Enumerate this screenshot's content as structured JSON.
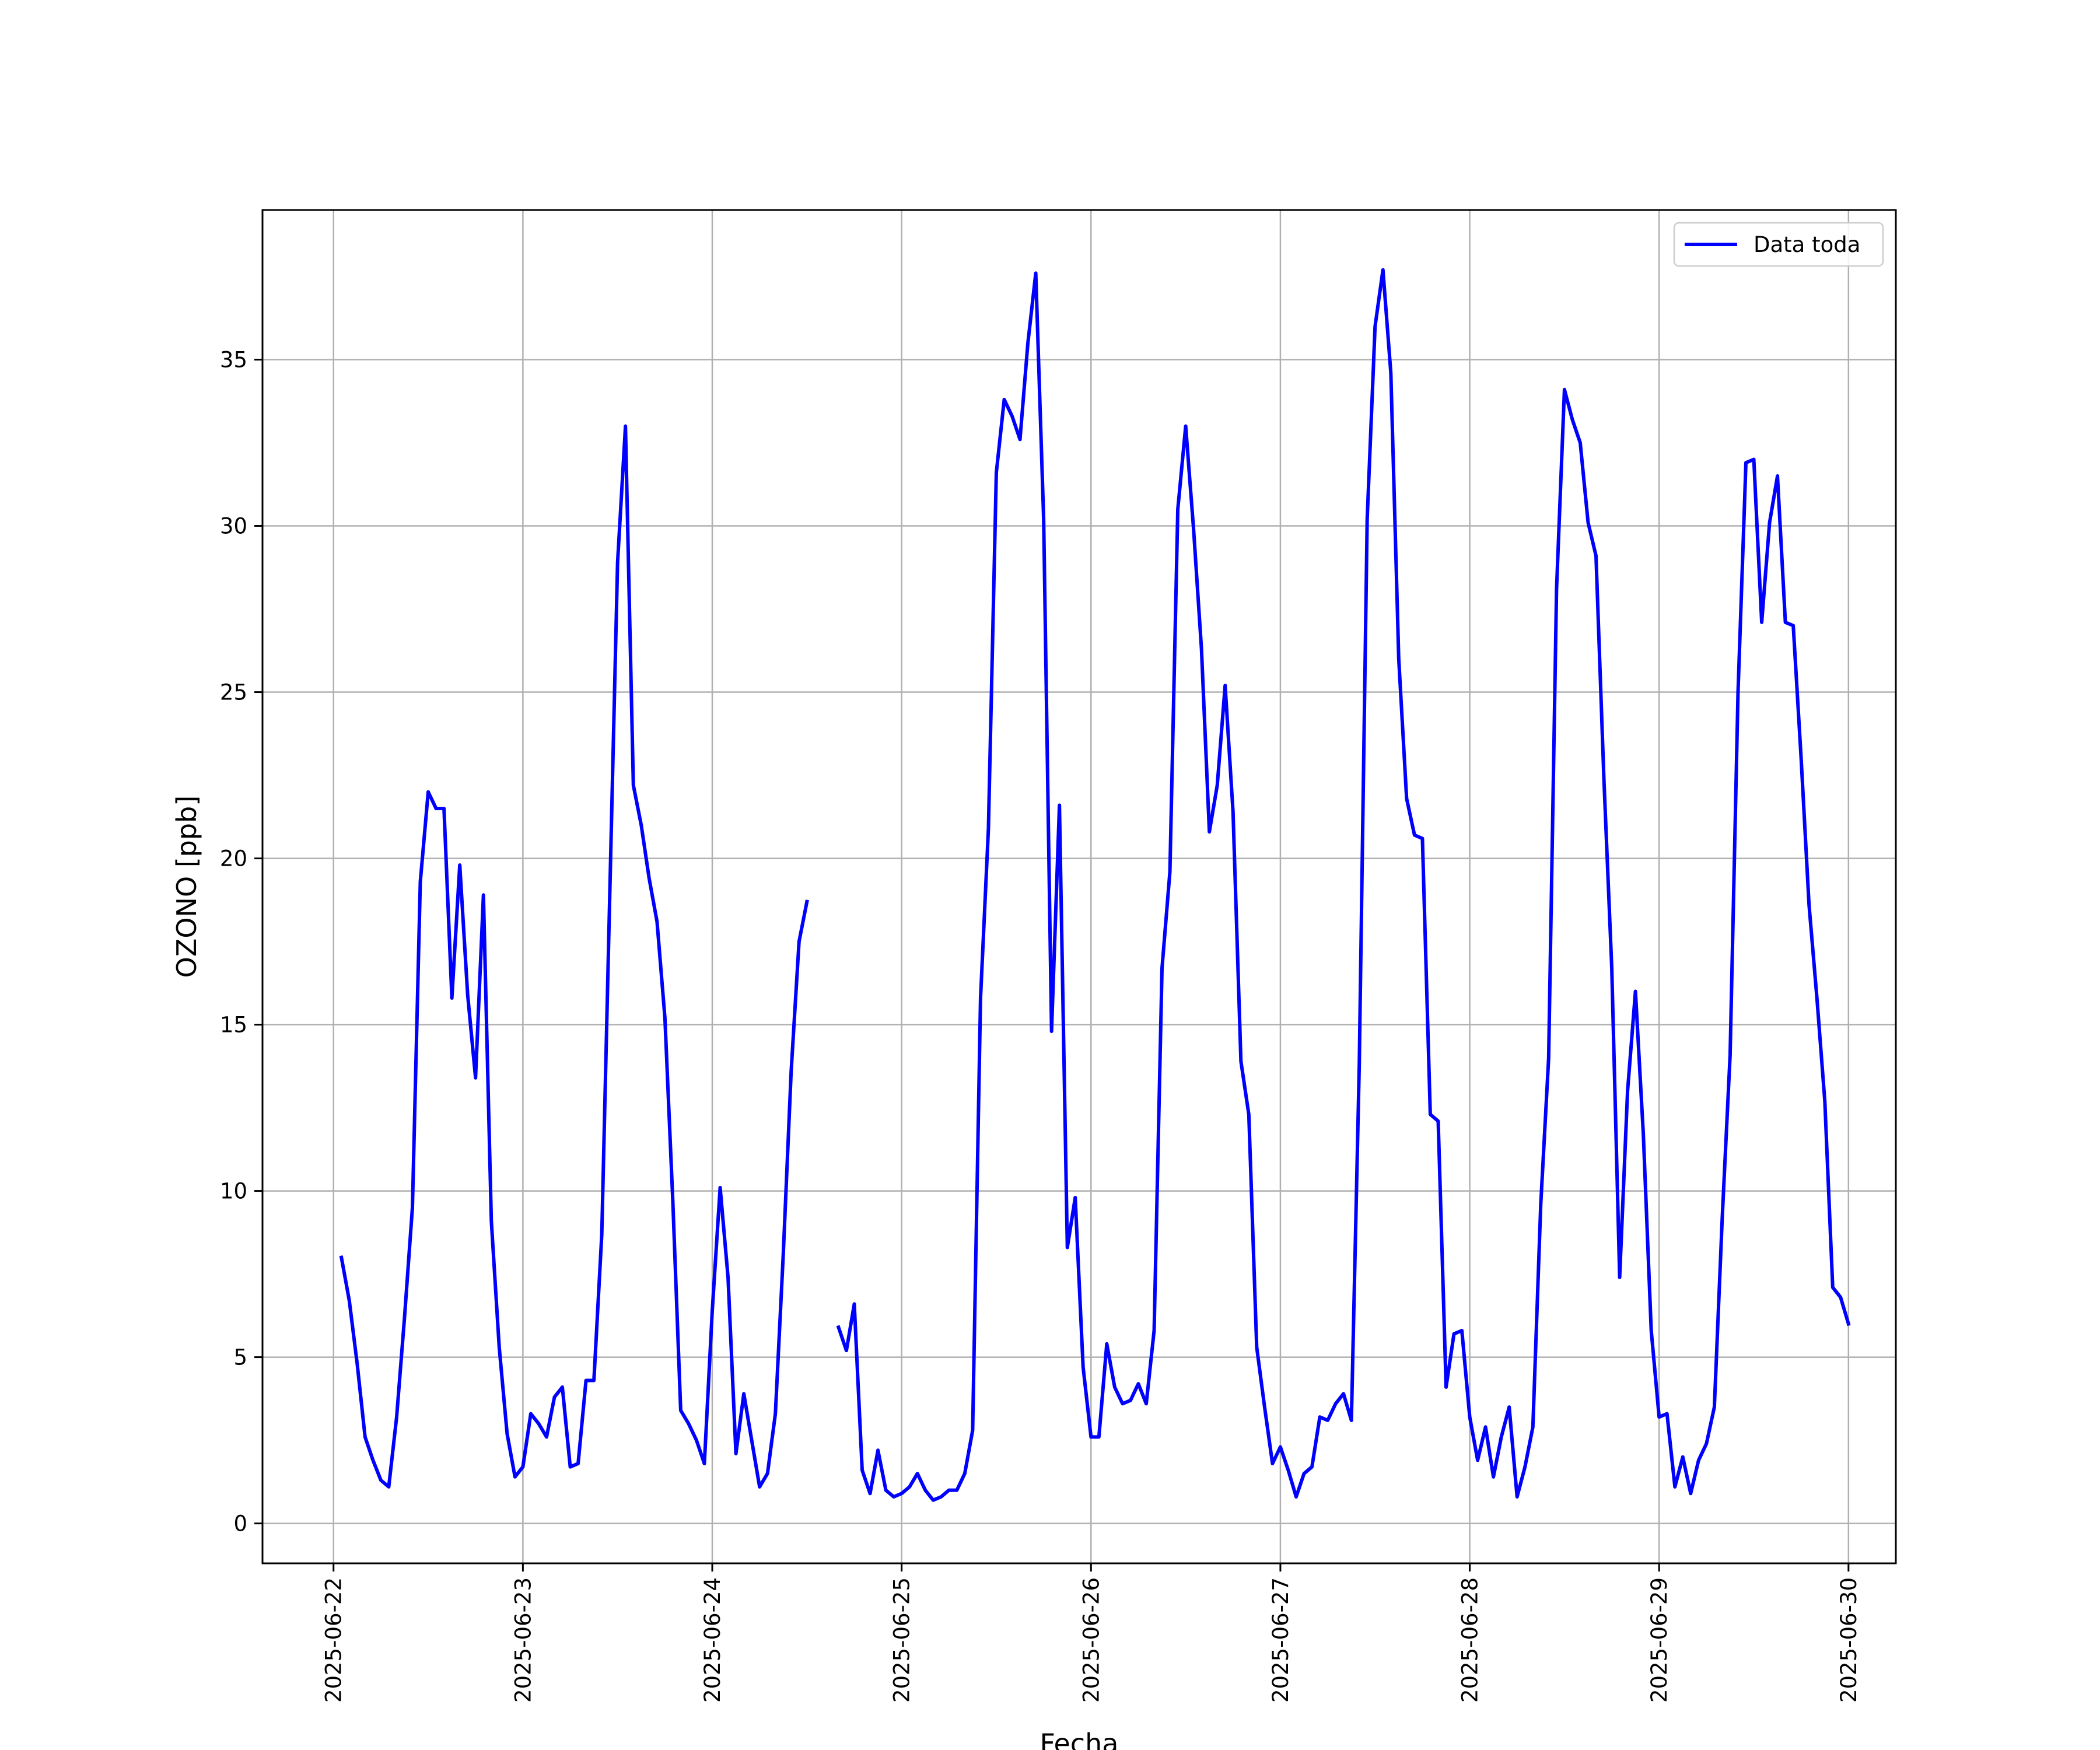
{
  "chart_data": {
    "type": "line",
    "title": "",
    "xlabel": "Fecha",
    "ylabel": "OZONO [ppb]",
    "ylim": [
      -1.2,
      39.5
    ],
    "xlim": [
      "2025-06-21T15:00",
      "2025-06-30T06:00"
    ],
    "grid": true,
    "legend_position": "upper right",
    "x_ticks": [
      "2025-06-22",
      "2025-06-23",
      "2025-06-24",
      "2025-06-25",
      "2025-06-26",
      "2025-06-27",
      "2025-06-28",
      "2025-06-29",
      "2025-06-30"
    ],
    "y_ticks": [
      0,
      5,
      10,
      15,
      20,
      25,
      30,
      35
    ],
    "series": [
      {
        "name": "Data toda",
        "color": "#0000ff",
        "segments": [
          {
            "start": "2025-06-22T01:00",
            "step_hours": 1,
            "values": [
              8.0,
              6.7,
              4.8,
              2.6,
              1.9,
              1.3,
              1.1,
              3.2,
              6.2,
              9.5,
              19.3,
              22.0,
              21.5,
              21.5,
              15.8,
              19.8,
              15.9,
              13.4,
              18.9,
              9.1,
              5.3,
              2.7,
              1.4,
              1.7,
              3.3,
              3.0,
              2.6,
              3.8,
              4.1,
              1.7,
              1.8,
              4.3,
              4.3,
              8.7,
              18.8,
              28.9,
              33.0,
              22.2,
              21.0,
              19.4,
              18.1,
              15.2,
              9.7,
              3.4,
              3.0,
              2.5,
              1.8,
              6.4,
              10.1,
              7.4,
              2.1,
              3.9,
              2.5,
              1.1,
              1.5,
              3.3,
              8.1,
              13.6,
              17.5,
              18.7
            ]
          },
          {
            "start": "2025-06-24T16:00",
            "step_hours": 1,
            "values": [
              5.9,
              5.2,
              6.6,
              1.6,
              0.9,
              2.2,
              1.0,
              0.8,
              0.9,
              1.1,
              1.5,
              1.0,
              0.7,
              0.8,
              1.0,
              1.0,
              1.5,
              2.8,
              15.8,
              20.9,
              31.6,
              33.8,
              33.3,
              32.6,
              35.5,
              37.6,
              30.2,
              14.8,
              21.6,
              8.3,
              9.8,
              4.7,
              2.6,
              2.6,
              5.4,
              4.1,
              3.6,
              3.7,
              4.2,
              3.6,
              5.8,
              16.7,
              19.6,
              30.5,
              33.0,
              29.9,
              26.3,
              20.8,
              22.2,
              25.2,
              21.4,
              13.9,
              12.3,
              5.3,
              3.5,
              1.8,
              2.3,
              1.6,
              0.8,
              1.5,
              1.7,
              3.2,
              3.1,
              3.6,
              3.9,
              3.1,
              13.8,
              30.2,
              36.0,
              37.7,
              34.6,
              26.0,
              21.8,
              20.7,
              20.6,
              12.3,
              12.1,
              4.1,
              5.7,
              5.8,
              3.2,
              1.9,
              2.9,
              1.4,
              2.6,
              3.5,
              0.8,
              1.7,
              2.9,
              9.6,
              14.0,
              28.1,
              34.1,
              33.2,
              32.5,
              30.1,
              29.1,
              22.4,
              16.7,
              7.4,
              13.0,
              16.0,
              11.7,
              5.8,
              3.2,
              3.3,
              1.1,
              2.0,
              0.9,
              1.9,
              2.4,
              3.5,
              9.2,
              14.1,
              25.0,
              31.9,
              32.0,
              27.1,
              30.1,
              31.5,
              27.1,
              27.0,
              23.0,
              18.6,
              15.8,
              12.7,
              7.1,
              6.8,
              6.0
            ]
          }
        ]
      }
    ]
  }
}
